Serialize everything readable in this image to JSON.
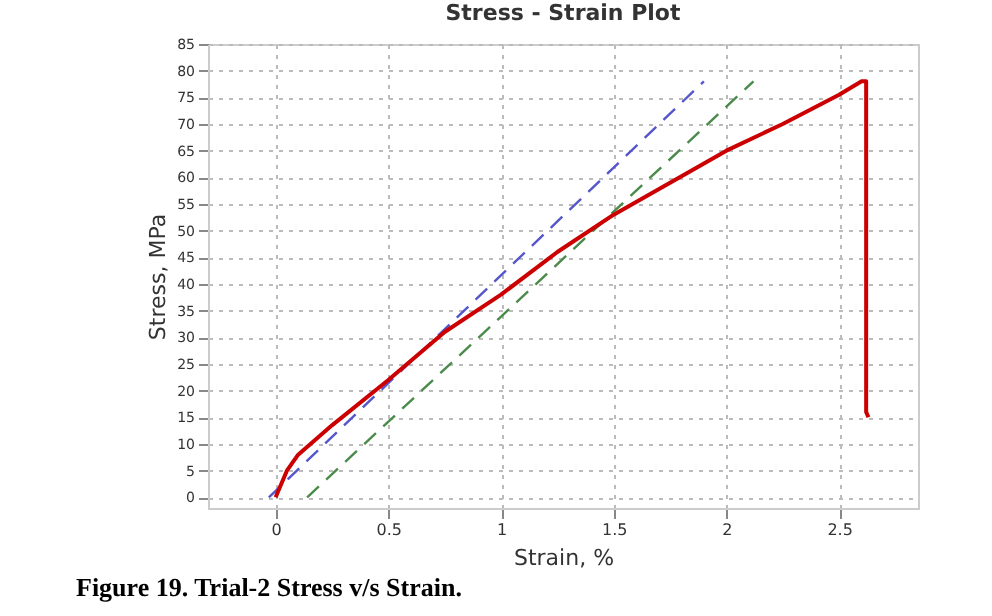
{
  "chart_data": {
    "type": "line",
    "title": "Stress - Strain Plot",
    "xlabel": "Strain, %",
    "ylabel": "Stress, MPa",
    "annotations": [
      "Figure 19. Trial-2 Stress v/s Strain."
    ],
    "xlim": [
      -0.3,
      2.85
    ],
    "xticks": [
      0,
      0.5,
      1,
      1.5,
      2,
      2.5
    ],
    "ylim": [
      -2,
      85
    ],
    "yticks": [
      0,
      5,
      10,
      15,
      20,
      25,
      30,
      35,
      40,
      45,
      50,
      55,
      60,
      65,
      70,
      75,
      80,
      85
    ],
    "grid": true,
    "marker": "none",
    "series": [
      {
        "color": "#5555cc",
        "line_style": "dashed",
        "x": [
          -0.03,
          1.9
        ],
        "values": [
          0,
          78
        ]
      },
      {
        "color": "#4a8a4a",
        "line_style": "dashed",
        "x": [
          0.14,
          2.12
        ],
        "values": [
          0,
          78
        ]
      },
      {
        "color": "#cc0000",
        "line_style": "solid",
        "x": [
          0,
          0.05,
          0.1,
          0.25,
          0.5,
          0.75,
          1,
          1.25,
          1.5,
          1.75,
          2,
          2.25,
          2.5,
          2.6,
          2.62,
          2.62,
          2.63
        ],
        "values": [
          0,
          5,
          8,
          13.5,
          22,
          31,
          38,
          46,
          53,
          59,
          65,
          70,
          75.5,
          78,
          78,
          16,
          15
        ]
      }
    ]
  }
}
